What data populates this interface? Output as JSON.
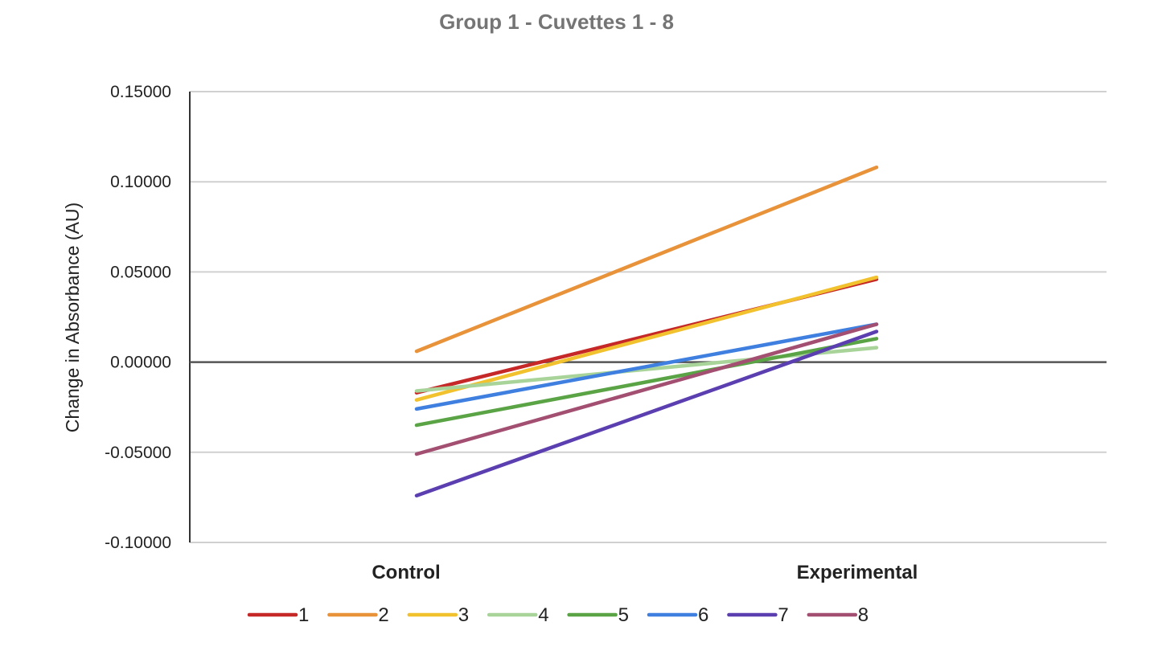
{
  "chart_data": {
    "type": "line",
    "title": "Group 1 - Cuvettes 1 - 8",
    "xlabel": "",
    "ylabel": "Change in Absorbance (AU)",
    "categories": [
      "Control",
      "Experimental"
    ],
    "ylim": [
      -0.1,
      0.15
    ],
    "yticks": [
      0.15,
      0.1,
      0.05,
      0.0,
      -0.05,
      -0.1
    ],
    "ytick_labels": [
      "0.15000",
      "0.10000",
      "0.05000",
      "0.00000",
      "-0.05000",
      "-0.10000"
    ],
    "grid": true,
    "legend_position": "bottom",
    "series": [
      {
        "name": "1",
        "color": "#c62828",
        "values": [
          -0.017,
          0.046
        ]
      },
      {
        "name": "2",
        "color": "#e8923a",
        "values": [
          0.006,
          0.108
        ]
      },
      {
        "name": "3",
        "color": "#f2c12e",
        "values": [
          -0.021,
          0.047
        ]
      },
      {
        "name": "4",
        "color": "#a8d49a",
        "values": [
          -0.016,
          0.008
        ]
      },
      {
        "name": "5",
        "color": "#5aa446",
        "values": [
          -0.035,
          0.013
        ]
      },
      {
        "name": "6",
        "color": "#3f7fe0",
        "values": [
          -0.026,
          0.021
        ]
      },
      {
        "name": "7",
        "color": "#5b3fb0",
        "values": [
          -0.074,
          0.017
        ]
      },
      {
        "name": "8",
        "color": "#a34f72",
        "values": [
          -0.051,
          0.021
        ]
      }
    ]
  }
}
